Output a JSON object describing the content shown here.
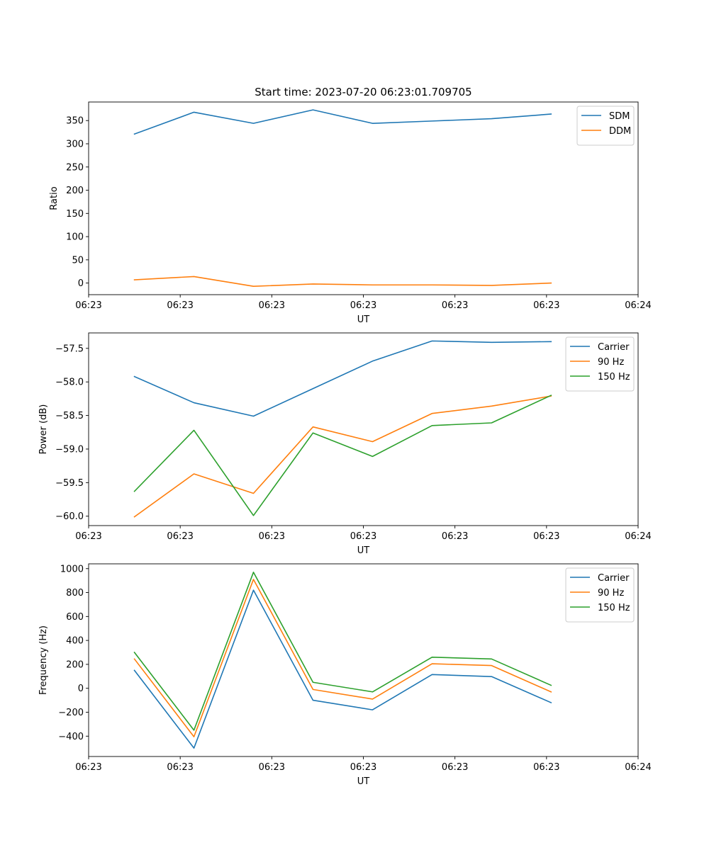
{
  "figure": {
    "title": "Start time: 2023-07-20 06:23:01.709705"
  },
  "chart_data": [
    {
      "type": "line",
      "title": "Start time: 2023-07-20 06:23:01.709705",
      "xlabel": "UT",
      "ylabel": "Ratio",
      "x": [
        0.5,
        1.15,
        1.8,
        2.45,
        3.1,
        3.75,
        4.4,
        5.05
      ],
      "xlim": [
        0,
        6
      ],
      "xticks": [
        0,
        1,
        2,
        3,
        4,
        5,
        6
      ],
      "xtick_labels": [
        "06:23",
        "06:23",
        "06:23",
        "06:23",
        "06:23",
        "06:23",
        "06:24"
      ],
      "ylim": [
        -25,
        390
      ],
      "yticks": [
        0,
        50,
        100,
        150,
        200,
        250,
        300,
        350
      ],
      "ytick_labels": [
        "0",
        "50",
        "100",
        "150",
        "200",
        "250",
        "300",
        "350"
      ],
      "legend_position": "top-right",
      "series": [
        {
          "name": "SDM",
          "color": "#1f77b4",
          "values": [
            321,
            368,
            344,
            373,
            344,
            349,
            354,
            364
          ]
        },
        {
          "name": "DDM",
          "color": "#ff7f0e",
          "values": [
            7,
            14,
            -7,
            -2,
            -4,
            -4,
            -5,
            0
          ]
        }
      ]
    },
    {
      "type": "line",
      "title": "",
      "xlabel": "UT",
      "ylabel": "Power (dB)",
      "x": [
        0.5,
        1.15,
        1.8,
        2.45,
        3.1,
        3.75,
        4.4,
        5.05
      ],
      "xlim": [
        0,
        6
      ],
      "xticks": [
        0,
        1,
        2,
        3,
        4,
        5,
        6
      ],
      "xtick_labels": [
        "06:23",
        "06:23",
        "06:23",
        "06:23",
        "06:23",
        "06:23",
        "06:24"
      ],
      "ylim": [
        -60.14,
        -57.27
      ],
      "yticks": [
        -60.0,
        -59.5,
        -59.0,
        -58.5,
        -58.0,
        -57.5
      ],
      "ytick_labels": [
        "−60.0",
        "−59.5",
        "−59.0",
        "−58.5",
        "−58.0",
        "−57.5"
      ],
      "legend_position": "top-right",
      "series": [
        {
          "name": "Carrier",
          "color": "#1f77b4",
          "values": [
            -57.92,
            -58.31,
            -58.51,
            -58.1,
            -57.69,
            -57.39,
            -57.41,
            -57.4
          ]
        },
        {
          "name": "90 Hz",
          "color": "#ff7f0e",
          "values": [
            -60.01,
            -59.37,
            -59.66,
            -58.67,
            -58.89,
            -58.47,
            -58.36,
            -58.21
          ]
        },
        {
          "name": "150 Hz",
          "color": "#2ca02c",
          "values": [
            -59.63,
            -58.72,
            -59.99,
            -58.76,
            -59.11,
            -58.65,
            -58.61,
            -58.2
          ]
        }
      ]
    },
    {
      "type": "line",
      "title": "",
      "xlabel": "UT",
      "ylabel": "Frequency (Hz)",
      "x": [
        0.5,
        1.15,
        1.8,
        2.45,
        3.1,
        3.75,
        4.4,
        5.05
      ],
      "xlim": [
        0,
        6
      ],
      "xticks": [
        0,
        1,
        2,
        3,
        4,
        5,
        6
      ],
      "xtick_labels": [
        "06:23",
        "06:23",
        "06:23",
        "06:23",
        "06:23",
        "06:23",
        "06:24"
      ],
      "ylim": [
        -570,
        1040
      ],
      "yticks": [
        -400,
        -200,
        0,
        200,
        400,
        600,
        800,
        1000
      ],
      "ytick_labels": [
        "−400",
        "−200",
        "0",
        "200",
        "400",
        "600",
        "800",
        "1000"
      ],
      "legend_position": "top-right",
      "series": [
        {
          "name": "Carrier",
          "color": "#1f77b4",
          "values": [
            150,
            -500,
            820,
            -100,
            -180,
            115,
            98,
            -120
          ]
        },
        {
          "name": "90 Hz",
          "color": "#ff7f0e",
          "values": [
            245,
            -405,
            910,
            -10,
            -90,
            205,
            190,
            -30
          ]
        },
        {
          "name": "150 Hz",
          "color": "#2ca02c",
          "values": [
            300,
            -350,
            970,
            50,
            -30,
            260,
            245,
            25
          ]
        }
      ]
    }
  ]
}
